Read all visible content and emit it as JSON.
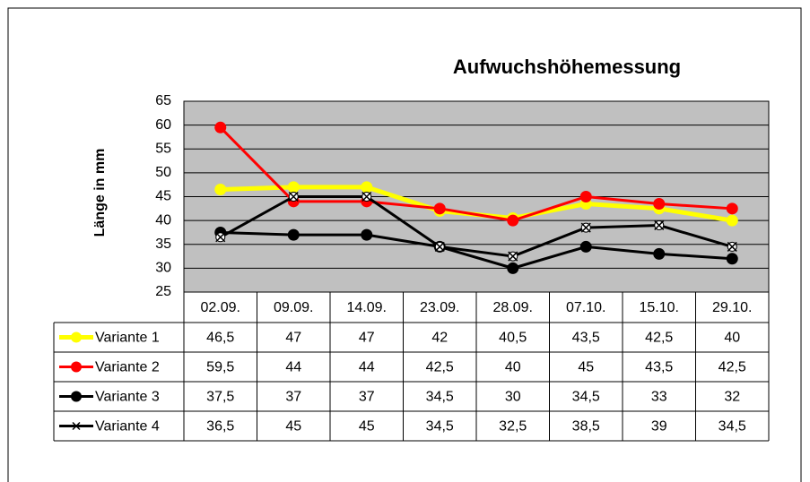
{
  "chart_data": {
    "type": "line",
    "title": "Aufwuchshöhemessung",
    "ylabel": "Länge in mm",
    "categories": [
      "02.09.",
      "09.09.",
      "14.09.",
      "23.09.",
      "28.09.",
      "07.10.",
      "15.10.",
      "29.10."
    ],
    "series": [
      {
        "name": "Variante 1",
        "color": "#ffff00",
        "marker": "circle",
        "values": [
          46.5,
          47,
          47,
          42,
          40.5,
          43.5,
          42.5,
          40
        ],
        "value_labels": [
          "46,5",
          "47",
          "47",
          "42",
          "40,5",
          "43,5",
          "42,5",
          "40"
        ]
      },
      {
        "name": "Variante 2",
        "color": "#ff0000",
        "marker": "circle",
        "values": [
          59.5,
          44,
          44,
          42.5,
          40,
          45,
          43.5,
          42.5
        ],
        "value_labels": [
          "59,5",
          "44",
          "44",
          "42,5",
          "40",
          "45",
          "43,5",
          "42,5"
        ]
      },
      {
        "name": "Variante 3",
        "color": "#000000",
        "marker": "circle",
        "values": [
          37.5,
          37,
          37,
          34.5,
          30,
          34.5,
          33,
          32
        ],
        "value_labels": [
          "37,5",
          "37",
          "37",
          "34,5",
          "30",
          "34,5",
          "33",
          "32"
        ]
      },
      {
        "name": "Variante 4",
        "color": "#000000",
        "marker": "x",
        "values": [
          36.5,
          45,
          45,
          34.5,
          32.5,
          38.5,
          39,
          34.5
        ],
        "value_labels": [
          "36,5",
          "45",
          "45",
          "34,5",
          "32,5",
          "38,5",
          "39",
          "34,5"
        ]
      }
    ],
    "ylim": [
      25,
      65
    ],
    "yticks": [
      25,
      30,
      35,
      40,
      45,
      50,
      55,
      60,
      65
    ],
    "grid": true
  }
}
